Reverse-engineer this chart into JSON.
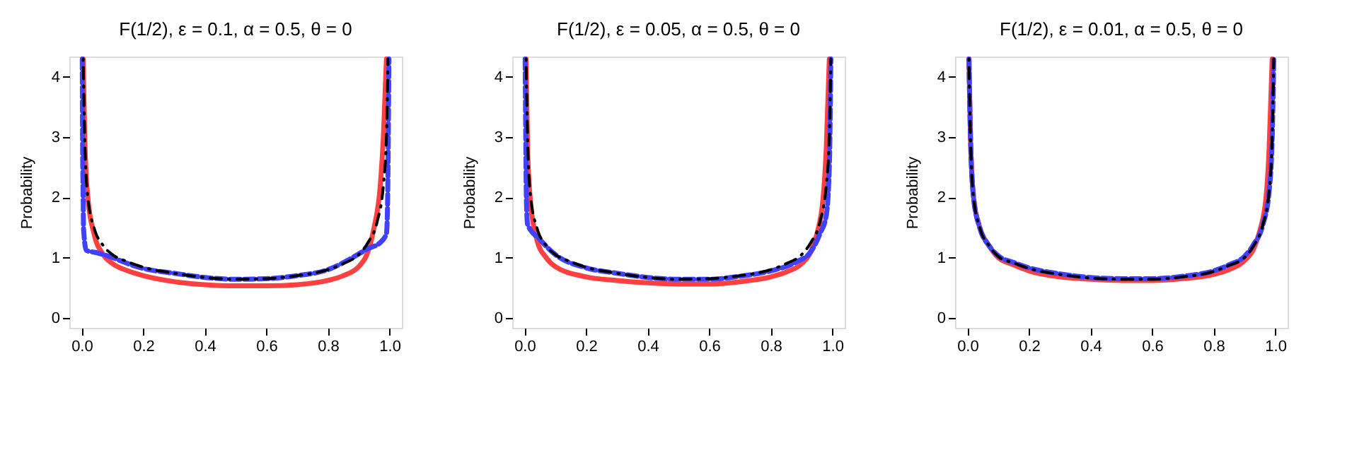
{
  "chart_data": [
    {
      "type": "line",
      "title": "F(1/2), ε = 0.1, α = 0.5, θ = 0",
      "ylabel": "Probability",
      "xlim": [
        -0.04,
        1.04
      ],
      "ylim": [
        -0.167,
        4.34
      ],
      "xticks": [
        {
          "value": 0,
          "label": "0.0"
        },
        {
          "value": 0.2,
          "label": "0.2"
        },
        {
          "value": 0.4,
          "label": "0.4"
        },
        {
          "value": 0.6,
          "label": "0.6"
        },
        {
          "value": 0.8,
          "label": "0.8"
        },
        {
          "value": 1,
          "label": "1.0"
        }
      ],
      "yticks": [
        0,
        1,
        2,
        3,
        4
      ],
      "grid": false,
      "series": [
        {
          "color": "#ff4040",
          "line_style": "solid",
          "x": [
            0.005,
            0.01,
            0.02,
            0.04,
            0.07,
            0.1,
            0.15,
            0.2,
            0.3,
            0.4,
            0.5,
            0.6,
            0.7,
            0.8,
            0.85,
            0.9,
            0.93,
            0.95,
            0.97,
            0.98,
            0.99
          ],
          "values": [
            4.3,
            3.0,
            2.0,
            1.4,
            1.05,
            0.9,
            0.78,
            0.7,
            0.6,
            0.55,
            0.53,
            0.53,
            0.55,
            0.62,
            0.7,
            0.85,
            1.1,
            1.5,
            2.2,
            3.0,
            4.3
          ]
        },
        {
          "color": "#4040ff",
          "line_style": "dashed",
          "x": [
            0.002,
            0.003,
            0.005,
            0.006,
            0.015,
            0.05,
            0.1,
            0.15,
            0.2,
            0.3,
            0.4,
            0.5,
            0.6,
            0.7,
            0.8,
            0.88,
            0.93,
            0.97,
            0.99,
            0.994,
            0.996,
            0.998
          ],
          "values": [
            4.3,
            3.0,
            2.0,
            1.5,
            1.12,
            1.08,
            1.0,
            0.9,
            0.82,
            0.74,
            0.67,
            0.64,
            0.65,
            0.7,
            0.8,
            1.0,
            1.15,
            1.25,
            1.4,
            2.0,
            3.0,
            4.3
          ]
        },
        {
          "color": "#000000",
          "line_style": "dotted",
          "x": [
            0.005,
            0.01,
            0.02,
            0.04,
            0.07,
            0.1,
            0.15,
            0.2,
            0.3,
            0.4,
            0.5,
            0.6,
            0.7,
            0.8,
            0.85,
            0.9,
            0.93,
            0.96,
            0.98,
            0.99,
            0.995
          ],
          "values": [
            4.3,
            3.0,
            2.0,
            1.5,
            1.2,
            1.05,
            0.93,
            0.84,
            0.74,
            0.67,
            0.64,
            0.65,
            0.7,
            0.8,
            0.9,
            1.05,
            1.25,
            1.6,
            2.2,
            3.0,
            4.3
          ]
        }
      ]
    },
    {
      "type": "line",
      "title": "F(1/2), ε = 0.05, α = 0.5, θ = 0",
      "ylabel": "Probability",
      "xlim": [
        -0.04,
        1.04
      ],
      "ylim": [
        -0.167,
        4.34
      ],
      "xticks": [
        {
          "value": 0,
          "label": "0.0"
        },
        {
          "value": 0.2,
          "label": "0.2"
        },
        {
          "value": 0.4,
          "label": "0.4"
        },
        {
          "value": 0.6,
          "label": "0.6"
        },
        {
          "value": 0.8,
          "label": "0.8"
        },
        {
          "value": 1,
          "label": "1.0"
        }
      ],
      "yticks": [
        0,
        1,
        2,
        3,
        4
      ],
      "grid": false,
      "series": [
        {
          "color": "#ff4040",
          "line_style": "solid",
          "x": [
            0.005,
            0.01,
            0.02,
            0.04,
            0.07,
            0.1,
            0.2,
            0.3,
            0.4,
            0.5,
            0.6,
            0.7,
            0.8,
            0.85,
            0.9,
            0.93,
            0.95,
            0.97,
            0.98,
            0.99
          ],
          "values": [
            4.3,
            2.8,
            1.9,
            1.3,
            1.0,
            0.85,
            0.68,
            0.62,
            0.58,
            0.56,
            0.56,
            0.6,
            0.68,
            0.76,
            0.9,
            1.1,
            1.4,
            2.0,
            2.8,
            4.3
          ]
        },
        {
          "color": "#4040ff",
          "line_style": "dashed",
          "x": [
            0.002,
            0.004,
            0.006,
            0.01,
            0.05,
            0.1,
            0.2,
            0.3,
            0.4,
            0.5,
            0.6,
            0.7,
            0.8,
            0.88,
            0.93,
            0.96,
            0.98,
            0.99,
            0.995
          ],
          "values": [
            4.3,
            3.0,
            2.0,
            1.55,
            1.3,
            1.05,
            0.83,
            0.74,
            0.67,
            0.64,
            0.64,
            0.69,
            0.78,
            0.92,
            1.1,
            1.4,
            1.7,
            2.5,
            4.3
          ]
        },
        {
          "color": "#000000",
          "line_style": "dotted",
          "x": [
            0.005,
            0.01,
            0.02,
            0.04,
            0.07,
            0.1,
            0.15,
            0.2,
            0.3,
            0.4,
            0.5,
            0.6,
            0.7,
            0.8,
            0.85,
            0.9,
            0.93,
            0.96,
            0.98,
            0.99,
            0.995
          ],
          "values": [
            4.3,
            3.0,
            2.0,
            1.5,
            1.2,
            1.05,
            0.93,
            0.84,
            0.74,
            0.67,
            0.64,
            0.65,
            0.7,
            0.8,
            0.9,
            1.05,
            1.25,
            1.6,
            2.2,
            3.0,
            4.3
          ]
        }
      ]
    },
    {
      "type": "line",
      "title": "F(1/2), ε = 0.01, α = 0.5, θ = 0",
      "ylabel": "Probability",
      "xlim": [
        -0.04,
        1.04
      ],
      "ylim": [
        -0.167,
        4.34
      ],
      "xticks": [
        {
          "value": 0,
          "label": "0.0"
        },
        {
          "value": 0.2,
          "label": "0.2"
        },
        {
          "value": 0.4,
          "label": "0.4"
        },
        {
          "value": 0.6,
          "label": "0.6"
        },
        {
          "value": 0.8,
          "label": "0.8"
        },
        {
          "value": 1,
          "label": "1.0"
        }
      ],
      "yticks": [
        0,
        1,
        2,
        3,
        4
      ],
      "grid": false,
      "series": [
        {
          "color": "#ff4040",
          "line_style": "solid",
          "x": [
            0.005,
            0.01,
            0.02,
            0.04,
            0.07,
            0.1,
            0.15,
            0.2,
            0.3,
            0.4,
            0.5,
            0.6,
            0.7,
            0.8,
            0.85,
            0.9,
            0.93,
            0.95,
            0.97,
            0.98,
            0.99
          ],
          "values": [
            4.3,
            3.0,
            2.0,
            1.5,
            1.2,
            1.0,
            0.88,
            0.78,
            0.68,
            0.64,
            0.62,
            0.62,
            0.65,
            0.72,
            0.8,
            0.95,
            1.15,
            1.45,
            2.0,
            2.8,
            4.3
          ]
        },
        {
          "color": "#4040ff",
          "line_style": "dashed",
          "x": [
            0.005,
            0.01,
            0.02,
            0.04,
            0.07,
            0.1,
            0.15,
            0.2,
            0.3,
            0.4,
            0.5,
            0.6,
            0.7,
            0.8,
            0.85,
            0.9,
            0.93,
            0.96,
            0.98,
            0.99,
            0.995
          ],
          "values": [
            4.3,
            3.0,
            2.0,
            1.5,
            1.2,
            1.03,
            0.92,
            0.83,
            0.73,
            0.67,
            0.65,
            0.65,
            0.69,
            0.78,
            0.88,
            1.02,
            1.22,
            1.55,
            2.1,
            3.0,
            4.3
          ]
        },
        {
          "color": "#000000",
          "line_style": "dotted",
          "x": [
            0.005,
            0.01,
            0.02,
            0.04,
            0.07,
            0.1,
            0.15,
            0.2,
            0.3,
            0.4,
            0.5,
            0.6,
            0.7,
            0.8,
            0.85,
            0.9,
            0.93,
            0.96,
            0.98,
            0.99,
            0.995
          ],
          "values": [
            4.3,
            3.0,
            2.0,
            1.5,
            1.2,
            1.02,
            0.91,
            0.82,
            0.72,
            0.66,
            0.64,
            0.64,
            0.68,
            0.77,
            0.87,
            1.0,
            1.2,
            1.55,
            2.1,
            3.0,
            4.3
          ]
        }
      ]
    }
  ]
}
